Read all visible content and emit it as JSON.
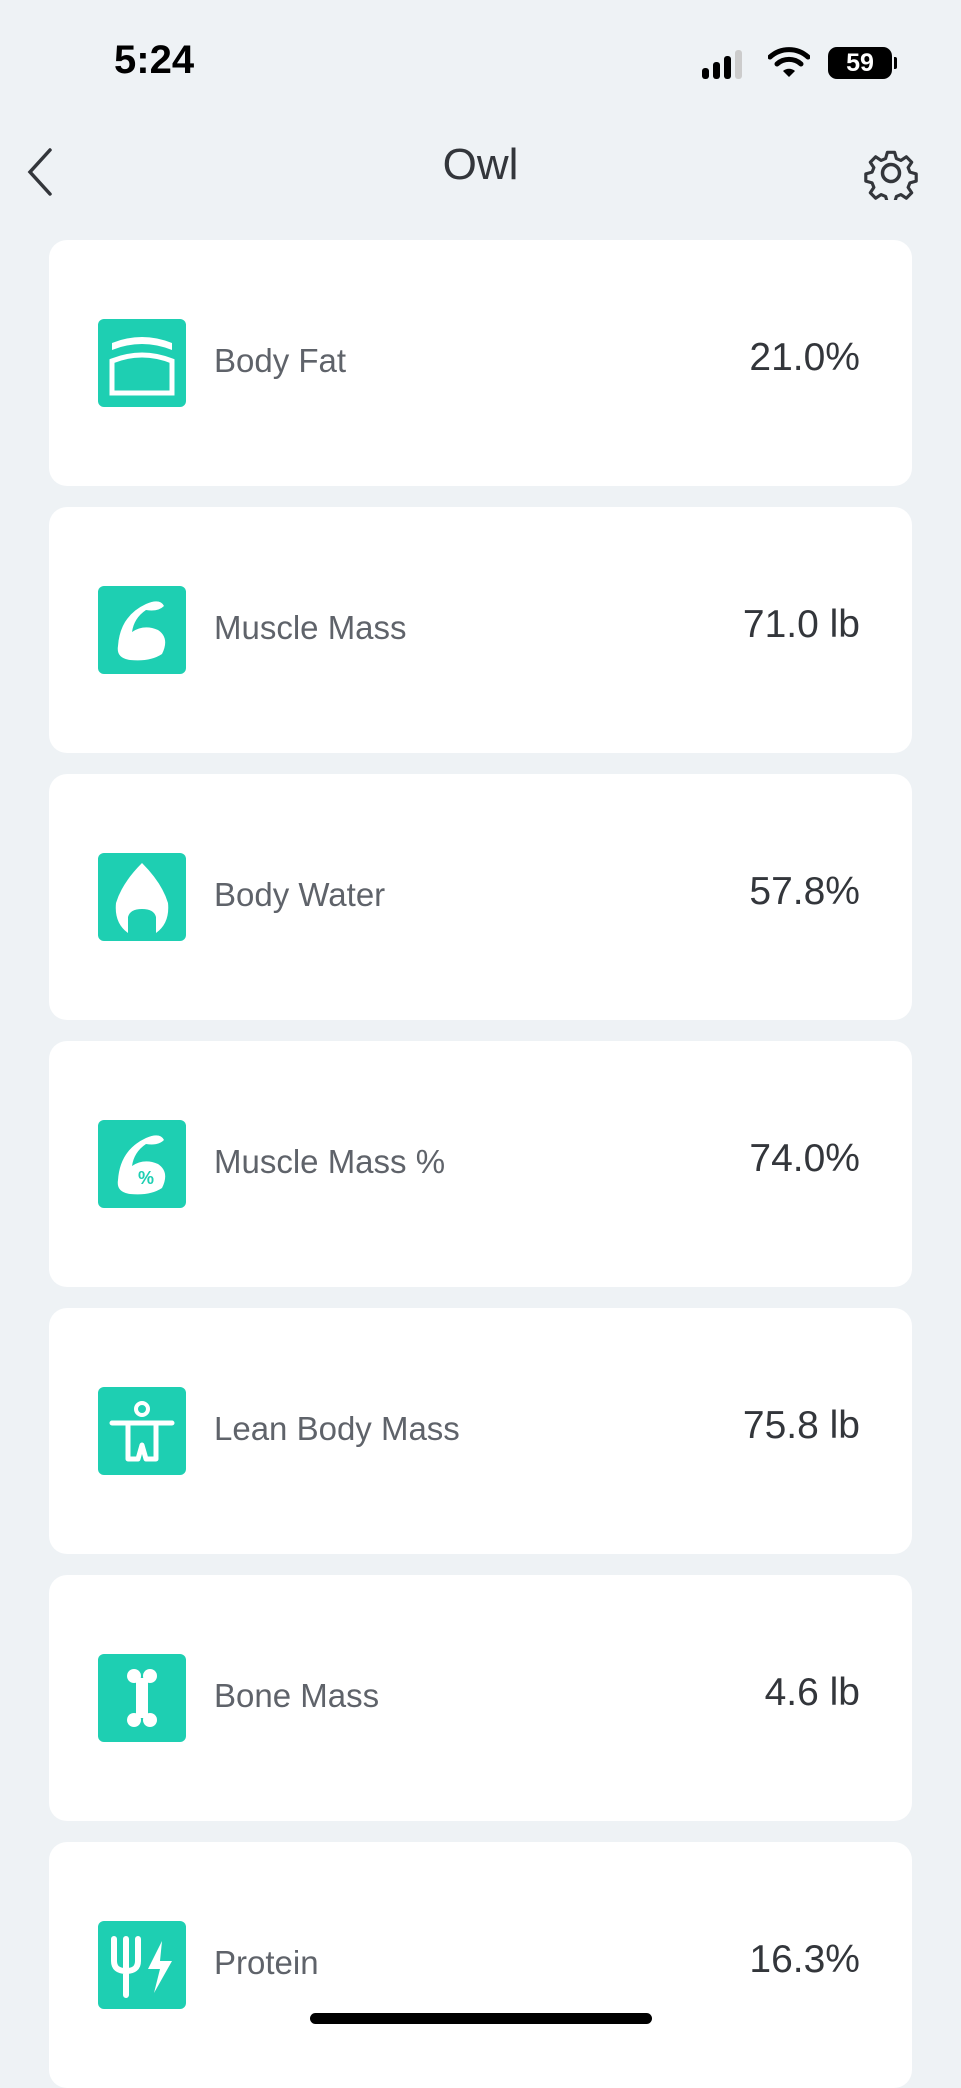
{
  "status_bar": {
    "time": "5:24",
    "battery": "59"
  },
  "header": {
    "title": "Owl",
    "back_icon": "chevron-left-icon",
    "settings_icon": "gear-icon"
  },
  "accent_color": "#1ecfb2",
  "metrics": [
    {
      "label": "Body Fat",
      "value": "21.0%",
      "icon": "body-fat-icon"
    },
    {
      "label": "Muscle Mass",
      "value": "71.0 lb",
      "icon": "muscle-icon"
    },
    {
      "label": "Body Water",
      "value": "57.8%",
      "icon": "water-drop-icon"
    },
    {
      "label": "Muscle Mass %",
      "value": "74.0%",
      "icon": "muscle-percent-icon"
    },
    {
      "label": "Lean Body Mass",
      "value": "75.8 lb",
      "icon": "lean-body-icon"
    },
    {
      "label": "Bone Mass",
      "value": "4.6 lb",
      "icon": "bone-icon"
    },
    {
      "label": "Protein",
      "value": "16.3%",
      "icon": "protein-icon"
    }
  ]
}
